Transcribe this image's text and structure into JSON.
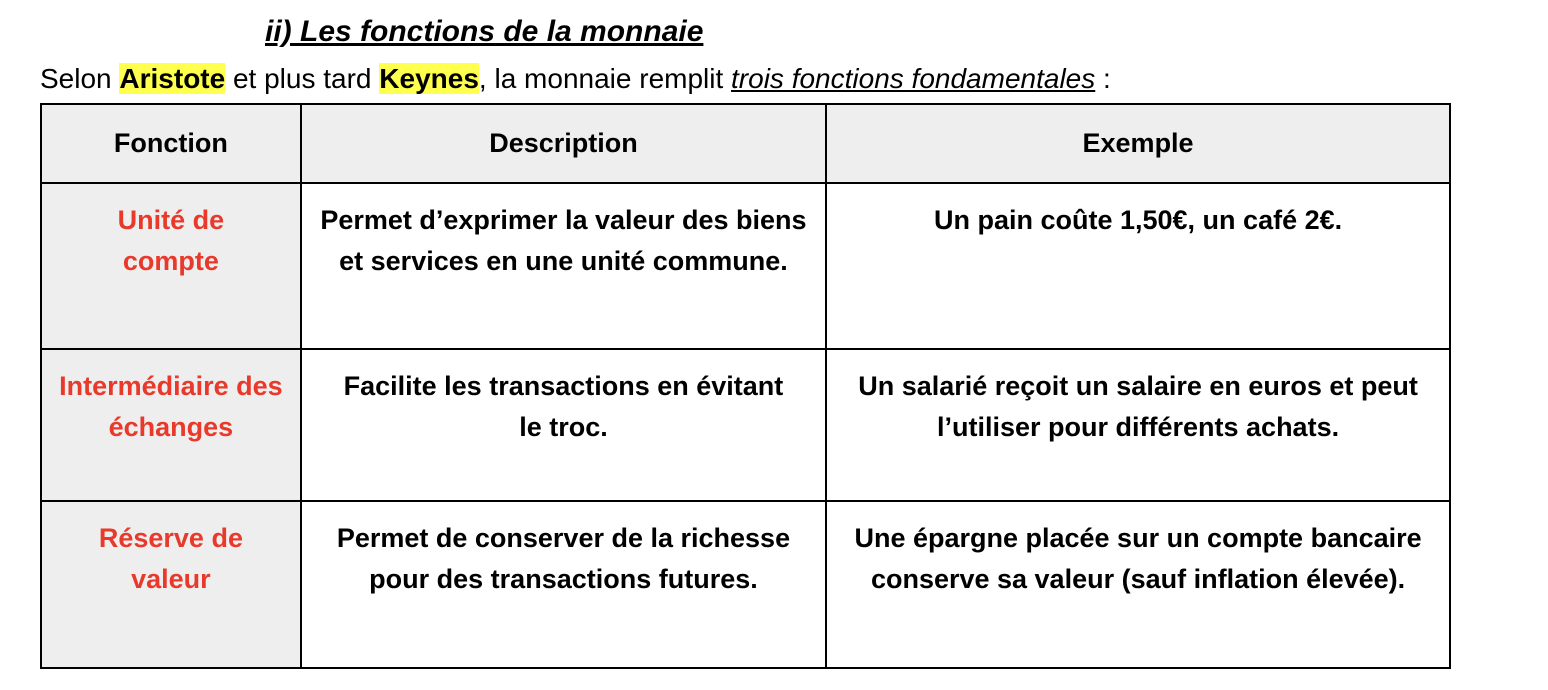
{
  "title": "ii) Les fonctions de la monnaie",
  "intro": {
    "part1": "Selon ",
    "name1": "Aristote",
    "part2": " et plus tard ",
    "name2": "Keynes",
    "part3": ", la monnaie remplit ",
    "emph": "trois fonctions fondamentales",
    "part4": " :"
  },
  "colors": {
    "highlight": "#ffff4d",
    "function_text": "#e8392b",
    "header_bg": "#eeeeee"
  },
  "table": {
    "headers": [
      "Fonction",
      "Description",
      "Exemple"
    ],
    "rows": [
      {
        "fonction": "Unité de compte",
        "description": "Permet d’exprimer la valeur des biens et services en une unité commune.",
        "exemple": "Un pain coûte 1,50€, un café 2€."
      },
      {
        "fonction": "Intermédiaire des échanges",
        "description": "Facilite les transactions en évitant le troc.",
        "exemple": "Un salarié reçoit un salaire en euros et peut l’utiliser pour différents achats."
      },
      {
        "fonction": "Réserve de valeur",
        "description": "Permet de conserver de la richesse pour des transactions futures.",
        "exemple": "Une épargne placée sur un compte bancaire conserve sa valeur (sauf inflation élevée)."
      }
    ]
  }
}
